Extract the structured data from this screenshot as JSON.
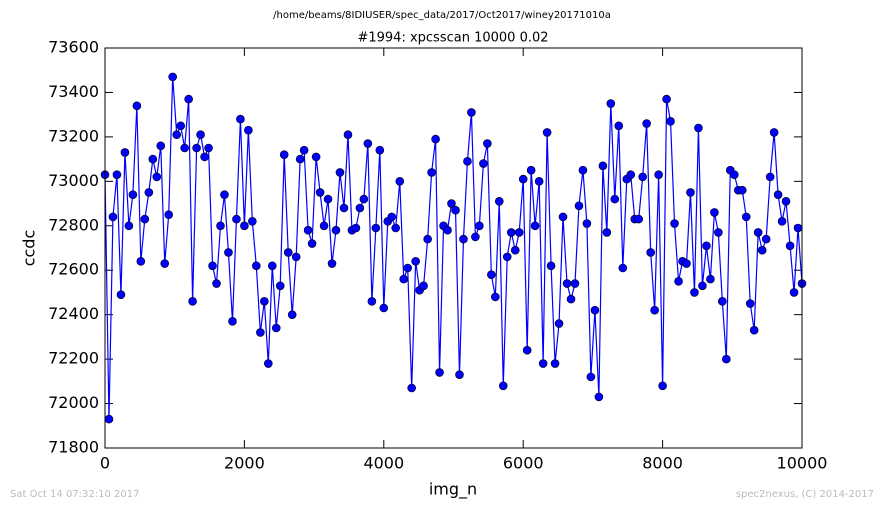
{
  "chart_data": {
    "type": "line",
    "suptitle": "/home/beams/8IDIUSER/spec_data/2017/Oct2017/winey20171010a",
    "title": "#1994: xpcsscan 10000 0.02",
    "xlabel": "img_n",
    "ylabel": "ccdc",
    "footer_left": "Sat Oct 14 07:32:10 2017",
    "footer_right": "spec2nexus, (C) 2014-2017",
    "xlim": [
      0,
      10000
    ],
    "xticks": [
      0,
      2000,
      4000,
      6000,
      8000,
      10000
    ],
    "ylim": [
      71800,
      73600
    ],
    "yticks": [
      71800,
      72000,
      72200,
      72400,
      72600,
      72800,
      73000,
      73200,
      73400,
      73600
    ],
    "grid": false,
    "x": [
      0,
      57,
      114,
      171,
      229,
      286,
      343,
      400,
      457,
      514,
      571,
      629,
      686,
      743,
      800,
      857,
      914,
      971,
      1029,
      1086,
      1143,
      1200,
      1257,
      1314,
      1371,
      1429,
      1486,
      1543,
      1600,
      1657,
      1714,
      1771,
      1829,
      1886,
      1943,
      2000,
      2057,
      2114,
      2171,
      2229,
      2286,
      2343,
      2400,
      2457,
      2514,
      2571,
      2629,
      2686,
      2743,
      2800,
      2857,
      2914,
      2971,
      3029,
      3086,
      3143,
      3200,
      3257,
      3314,
      3371,
      3429,
      3486,
      3543,
      3600,
      3657,
      3714,
      3771,
      3829,
      3886,
      3943,
      4000,
      4057,
      4114,
      4171,
      4229,
      4286,
      4343,
      4400,
      4457,
      4514,
      4571,
      4629,
      4686,
      4743,
      4800,
      4857,
      4914,
      4971,
      5029,
      5086,
      5143,
      5200,
      5257,
      5314,
      5371,
      5429,
      5486,
      5543,
      5600,
      5657,
      5714,
      5771,
      5829,
      5886,
      5943,
      6000,
      6057,
      6114,
      6171,
      6229,
      6286,
      6343,
      6400,
      6457,
      6514,
      6571,
      6629,
      6686,
      6743,
      6800,
      6857,
      6914,
      6971,
      7029,
      7086,
      7143,
      7200,
      7257,
      7314,
      7371,
      7429,
      7486,
      7543,
      7600,
      7657,
      7714,
      7771,
      7829,
      7886,
      7943,
      8000,
      8057,
      8114,
      8171,
      8229,
      8286,
      8343,
      8400,
      8457,
      8514,
      8571,
      8629,
      8686,
      8743,
      8800,
      8857,
      8914,
      8971,
      9029,
      9086,
      9143,
      9200,
      9257,
      9314,
      9371,
      9429,
      9486,
      9543,
      9600,
      9657,
      9714,
      9771,
      9829,
      9886,
      9943,
      10000
    ],
    "series": [
      {
        "color": "#0000ff",
        "values": [
          73030,
          71930,
          72840,
          73030,
          72490,
          73130,
          72800,
          72940,
          73340,
          72640,
          72830,
          72950,
          73100,
          73020,
          73160,
          72630,
          72850,
          73470,
          73210,
          73250,
          73150,
          73370,
          72460,
          73150,
          73210,
          73110,
          73150,
          72620,
          72540,
          72800,
          72940,
          72680,
          72370,
          72830,
          73280,
          72800,
          73230,
          72820,
          72620,
          72320,
          72460,
          72180,
          72620,
          72340,
          72530,
          73120,
          72680,
          72400,
          72660,
          73100,
          73140,
          72780,
          72720,
          73110,
          72950,
          72800,
          72920,
          72630,
          72780,
          73040,
          72880,
          73210,
          72780,
          72790,
          72880,
          72920,
          73170,
          72460,
          72790,
          73140,
          72430,
          72820,
          72840,
          72790,
          73000,
          72560,
          72610,
          72070,
          72640,
          72510,
          72530,
          72740,
          73040,
          73190,
          72140,
          72800,
          72780,
          72900,
          72870,
          72130,
          72740,
          73090,
          73310,
          72750,
          72800,
          73080,
          73170,
          72580,
          72480,
          72910,
          72080,
          72660,
          72770,
          72690,
          72770,
          73010,
          72240,
          73050,
          72800,
          73000,
          72180,
          73220,
          72620,
          72180,
          72360,
          72840,
          72540,
          72470,
          72540,
          72890,
          73050,
          72810,
          72120,
          72420,
          72030,
          73070,
          72770,
          73350,
          72920,
          73250,
          72610,
          73010,
          73030,
          72830,
          72830,
          73020,
          73260,
          72680,
          72420,
          73030,
          72080,
          73370,
          73270,
          72810,
          72550,
          72640,
          72630,
          72950,
          72500,
          73240,
          72530,
          72710,
          72560,
          72860,
          72770,
          72460,
          72200,
          73050,
          73030,
          72960,
          72960,
          72840,
          72450,
          72330,
          72770,
          72690,
          72740,
          73020,
          73220,
          72940,
          72820,
          72910,
          72710,
          72500,
          72790,
          72540
        ]
      }
    ]
  }
}
